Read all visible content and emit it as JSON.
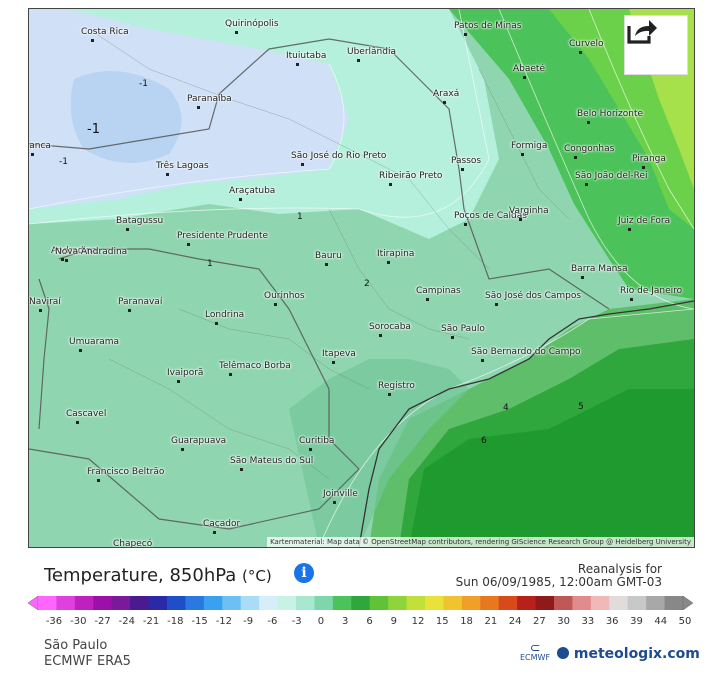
{
  "share_icon": "share-icon",
  "attribution": "Kartenmaterial: Map data © OpenStreetMap contributors, rendering GIScience Research Group @ Heidelberg University",
  "legend": {
    "title": "Temperature, 850hPa",
    "unit": "(°C)",
    "info_icon": "i",
    "reanalysis_line1": "Reanalysis for",
    "reanalysis_line2": "Sun 06/09/1985, 12:00am GMT-03",
    "ticks": [
      "-36",
      "-30",
      "-27",
      "-24",
      "-21",
      "-18",
      "-15",
      "-12",
      "-9",
      "-6",
      "-3",
      "0",
      "3",
      "6",
      "9",
      "12",
      "15",
      "18",
      "21",
      "24",
      "27",
      "30",
      "33",
      "36",
      "39",
      "44",
      "50"
    ],
    "location": "São Paulo",
    "model": "ECMWF ERA5",
    "ecmwf_logo": "ECMWF",
    "brand": "meteologix.com"
  },
  "colors": {
    "coldest": "#cfe0f7",
    "cool": "#b4f0dc",
    "mid": "#8fd6b0",
    "warm_green": "#4cc25a",
    "hot_green": "#1f9a2e",
    "yellow_green": "#b8e84a"
  },
  "isotherm_labels": [
    "-1",
    "-1",
    "-1",
    "1",
    "1",
    "2",
    "4",
    "5",
    "6"
  ],
  "cities": [
    "Costa Rica",
    "Quirinópolis",
    "Patos de Minas",
    "Curvelo",
    "Ituiutaba",
    "Uberlândia",
    "Abaeté",
    "Paranaíba",
    "Araxá",
    "Belo Horizonte",
    "Franca",
    "Formiga",
    "Congonhas",
    "Três Lagoas",
    "São José do Rio Preto",
    "Passos",
    "São João del-Rei",
    "Piranga",
    "Andradina",
    "Ribeirão Preto",
    "Araçatuba",
    "Poços de Caldas",
    "Varginha",
    "Juiz de Fora",
    "Batagussu",
    "Presidente Prudente",
    "Nova Andradina",
    "Bauru",
    "Itirapina",
    "Barra Mansa",
    "Campinas",
    "São José dos Campos",
    "Rio de Janeiro",
    "Paranavaí",
    "Ourinhos",
    "Naviraí",
    "Londrina",
    "Sorocaba",
    "São Paulo",
    "Umuarama",
    "São Bernardo do Campo",
    "Itapeva",
    "Telêmaco Borba",
    "Ivaiporã",
    "Registro",
    "Cascavel",
    "Guarapuava",
    "Curitiba",
    "Francisco Beltrão",
    "São Mateus do Sul",
    "Joinville",
    "Caçador",
    "Chapecó"
  ]
}
